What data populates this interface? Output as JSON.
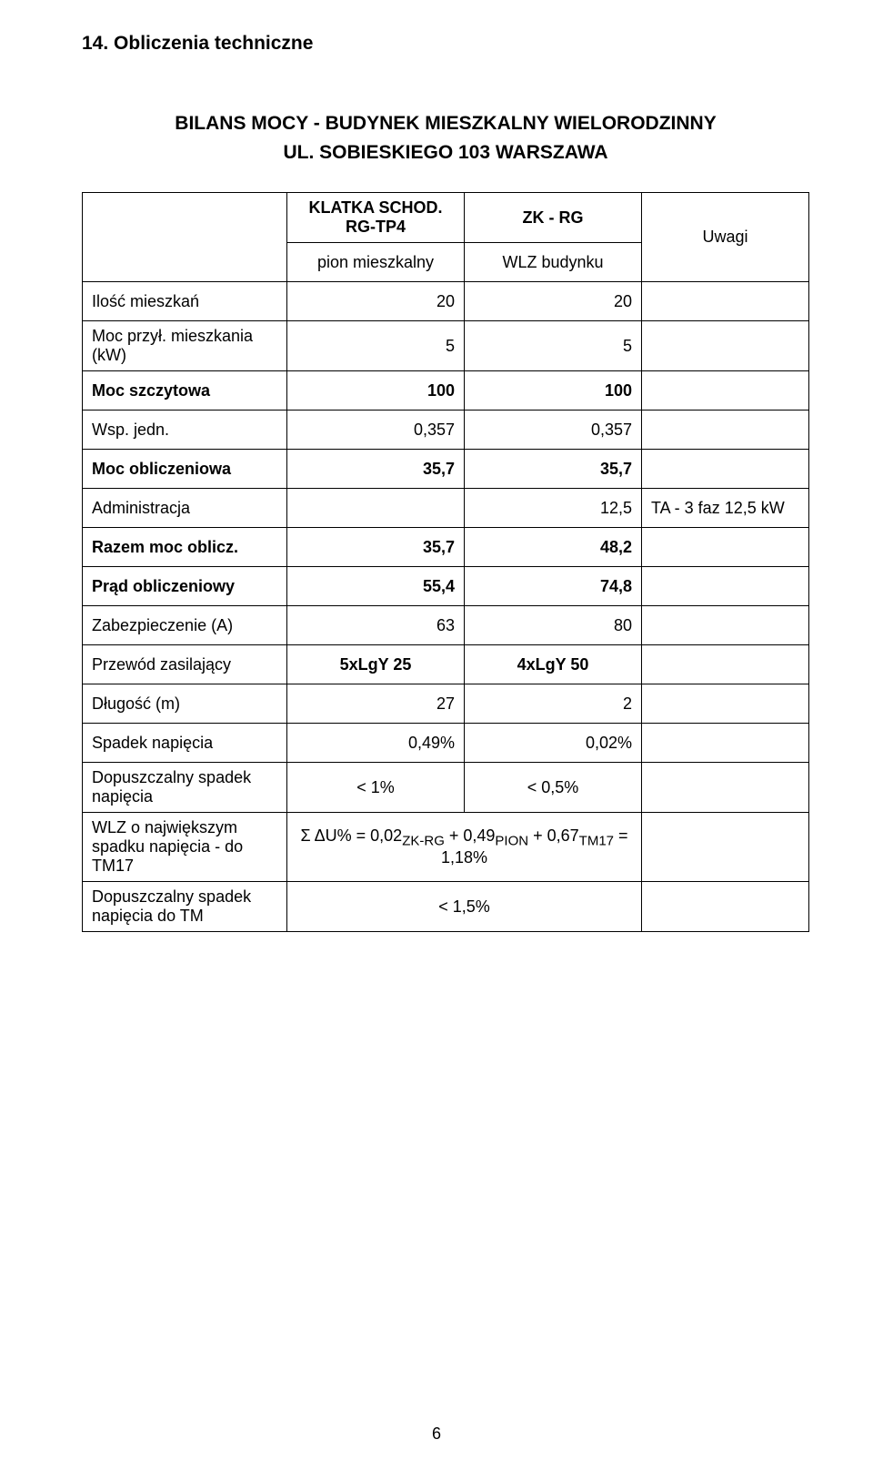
{
  "section_heading": "14. Obliczenia techniczne",
  "title_line1": "BILANS MOCY - BUDYNEK MIESZKALNY WIELORODZINNY",
  "title_line2": "UL. SOBIESKIEGO 103 WARSZAWA",
  "header": {
    "colA_top": "KLATKA SCHOD. RG-TP4",
    "colB_top": "ZK - RG",
    "uwagi": "Uwagi",
    "colA_sub": "pion mieszkalny",
    "colB_sub": "WLZ budynku"
  },
  "rows": {
    "ilosc_mieszkan": {
      "label": "Ilość mieszkań",
      "a": "20",
      "b": "20",
      "c": ""
    },
    "moc_przyl": {
      "label": "Moc przył. mieszkania (kW)",
      "a": "5",
      "b": "5",
      "c": ""
    },
    "moc_szczytowa": {
      "label": "Moc szczytowa",
      "a": "100",
      "b": "100",
      "c": ""
    },
    "wsp_jedn": {
      "label": "Wsp. jedn.",
      "a": "0,357",
      "b": "0,357",
      "c": ""
    },
    "moc_obliczeniowa": {
      "label": "Moc obliczeniowa",
      "a": "35,7",
      "b": "35,7",
      "c": ""
    },
    "administracja": {
      "label": "Administracja",
      "a": "",
      "b": "12,5",
      "c": "TA - 3 faz 12,5 kW"
    },
    "razem_moc": {
      "label": "Razem moc oblicz.",
      "a": "35,7",
      "b": "48,2",
      "c": ""
    },
    "prad": {
      "label": "Prąd obliczeniowy",
      "a": "55,4",
      "b": "74,8",
      "c": ""
    },
    "zabezp": {
      "label": "Zabezpieczenie (A)",
      "a": "63",
      "b": "80",
      "c": ""
    },
    "przewod": {
      "label": "Przewód zasilający",
      "a": "5xLgY 25",
      "b": "4xLgY 50",
      "c": ""
    },
    "dlugosc": {
      "label": "Długość (m)",
      "a": "27",
      "b": "2",
      "c": ""
    },
    "spadek": {
      "label": "Spadek napięcia",
      "a": "0,49%",
      "b": "0,02%",
      "c": ""
    },
    "dop_spadek": {
      "label": "Dopuszczalny spadek napięcia",
      "a": "< 1%",
      "b": "< 0,5%",
      "c": ""
    },
    "wlz_najw_line1": "Σ ΔU% =  0,02",
    "wlz_najw_sub1": "ZK-RG",
    "wlz_najw_mid1": " + 0,49",
    "wlz_najw_sub2": "PION",
    "wlz_najw_mid2": "  + 0,67",
    "wlz_najw_sub3": "TM17",
    "wlz_najw_end": "  =  1,18%",
    "wlz_label": "WLZ o największym spadku napięcia - do TM17",
    "dop_tm": {
      "label": "Dopuszczalny spadek napięcia do TM",
      "ab": "< 1,5%",
      "c": ""
    }
  },
  "page_number": "6"
}
